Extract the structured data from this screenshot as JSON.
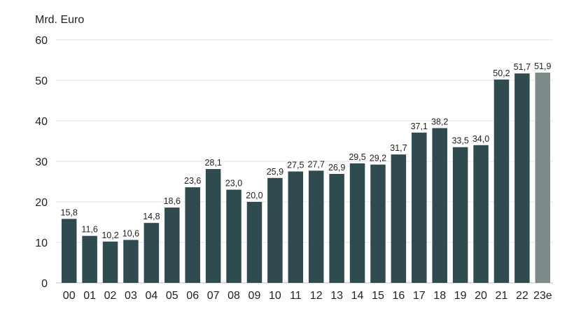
{
  "chart_data": {
    "type": "bar",
    "unit_label": "Mrd. Euro",
    "categories": [
      "00",
      "01",
      "02",
      "03",
      "04",
      "05",
      "06",
      "07",
      "08",
      "09",
      "10",
      "11",
      "12",
      "13",
      "14",
      "15",
      "16",
      "17",
      "18",
      "19",
      "20",
      "21",
      "22",
      "23e"
    ],
    "values": [
      15.8,
      11.6,
      10.2,
      10.6,
      14.8,
      18.6,
      23.6,
      28.1,
      23.0,
      20.0,
      25.9,
      27.5,
      27.7,
      26.9,
      29.5,
      29.2,
      31.7,
      37.1,
      38.2,
      33.5,
      34.0,
      50.2,
      51.7,
      51.9
    ],
    "value_labels": [
      "15,8",
      "11,6",
      "10,2",
      "10,6",
      "14,8",
      "18,6",
      "23,6",
      "28,1",
      "23,0",
      "20,0",
      "25,9",
      "27,5",
      "27,7",
      "26,9",
      "29,5",
      "29,2",
      "31,7",
      "37,1",
      "38,2",
      "33,5",
      "34,0",
      "50,2",
      "51,7",
      "51,9"
    ],
    "estimate_flags": [
      false,
      false,
      false,
      false,
      false,
      false,
      false,
      false,
      false,
      false,
      false,
      false,
      false,
      false,
      false,
      false,
      false,
      false,
      false,
      false,
      false,
      false,
      false,
      true
    ],
    "ylim": [
      0,
      60
    ],
    "yticks": [
      0,
      10,
      20,
      30,
      40,
      50,
      60
    ],
    "grid": true,
    "colors": {
      "bar": "#2f4b4f",
      "estimate_bar": "#7d8b8b",
      "grid": "#e6e6e6"
    }
  }
}
